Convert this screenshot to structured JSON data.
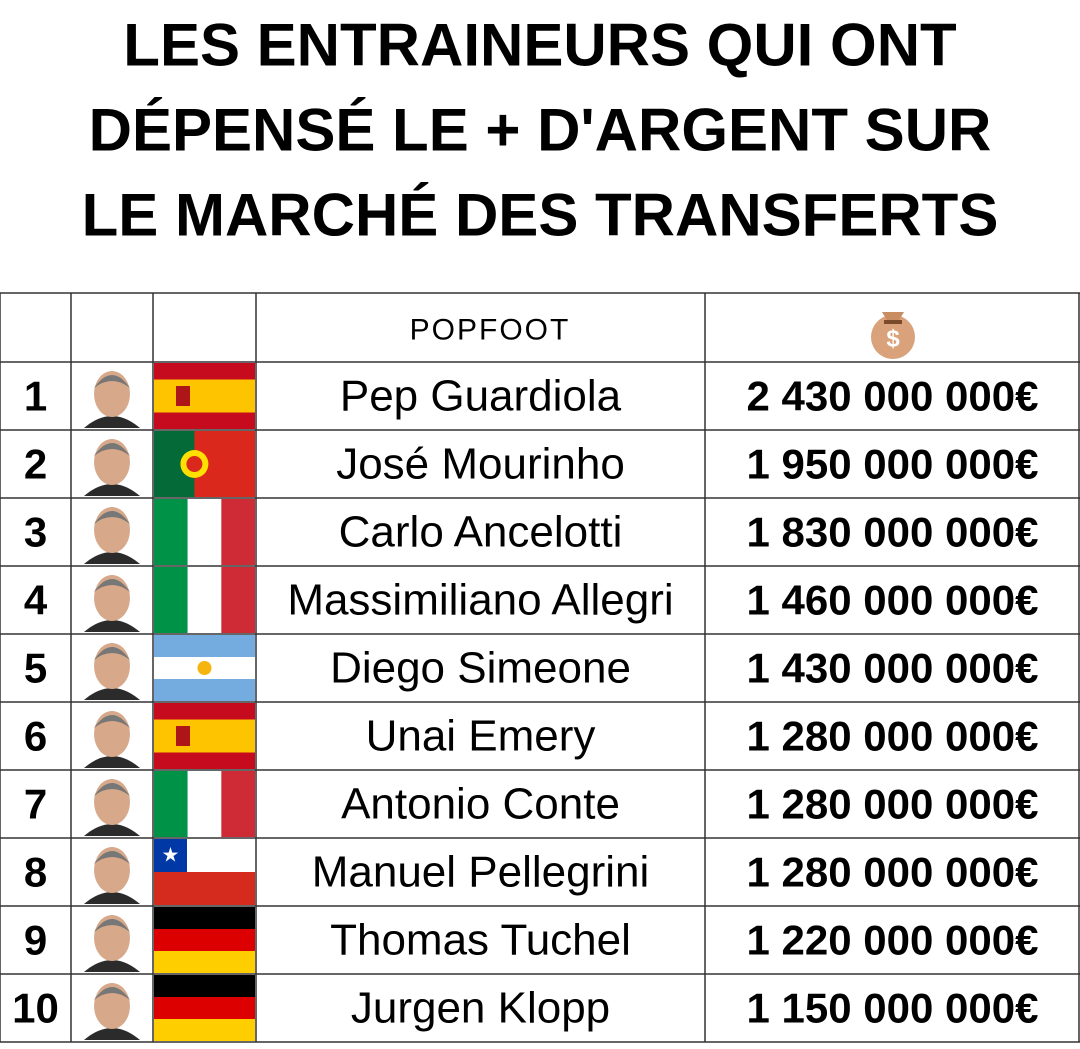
{
  "title": {
    "lines": [
      "LES ENTRAINEURS QUI ONT",
      "DÉPENSÉ LE + D'ARGENT SUR",
      "LE MARCHÉ DES TRANSFERTS"
    ]
  },
  "table": {
    "brand": "POPFOOT",
    "rows": [
      [
        "1",
        "Pep Guardiola",
        "2 430 000 000€"
      ],
      [
        "2",
        "José Mourinho",
        "1 950 000 000€"
      ],
      [
        "3",
        "Carlo Ancelotti",
        "1 830 000 000€"
      ],
      [
        "4",
        "Massimiliano Allegri",
        "1 460 000 000€"
      ],
      [
        "5",
        "Diego Simeone",
        "1 430 000 000€"
      ],
      [
        "6",
        "Unai Emery",
        "1 280 000 000€"
      ],
      [
        "7",
        "Antonio Conte",
        "1 280 000 000€"
      ],
      [
        "8",
        "Manuel Pellegrini",
        "1 280 000 000€"
      ],
      [
        "9",
        "Thomas Tuchel",
        "1 220 000 000€"
      ],
      [
        "10",
        "Jurgen Klopp",
        "1 150 000 000€"
      ]
    ]
  }
}
